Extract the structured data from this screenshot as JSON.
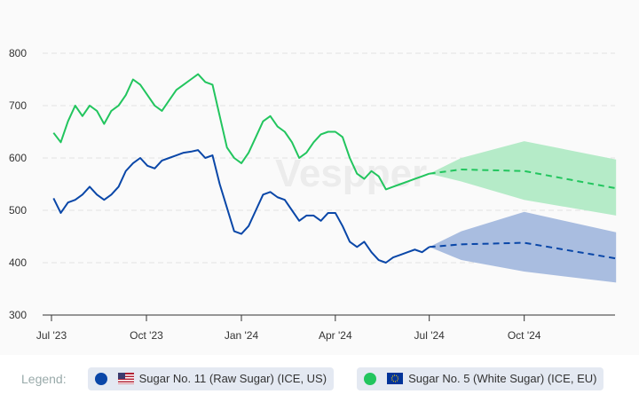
{
  "chart_data": {
    "type": "line",
    "watermark": "Vespper",
    "ylim": [
      300,
      800
    ],
    "yticks": [
      300,
      400,
      500,
      600,
      700,
      800
    ],
    "xlim": [
      "2023-06-26",
      "2024-12-29"
    ],
    "xticks": [
      {
        "d": "2023-07-01",
        "label": "Jul '23"
      },
      {
        "d": "2023-10-01",
        "label": "Oct '23"
      },
      {
        "d": "2024-01-01",
        "label": "Jan '24"
      },
      {
        "d": "2024-04-01",
        "label": "Apr '24"
      },
      {
        "d": "2024-07-01",
        "label": "Jul '24"
      },
      {
        "d": "2024-10-01",
        "label": "Oct '24"
      }
    ],
    "grid": "horizontal dashed",
    "dates": [
      "2023-07-03",
      "2023-07-10",
      "2023-07-17",
      "2023-07-24",
      "2023-07-31",
      "2023-08-07",
      "2023-08-14",
      "2023-08-21",
      "2023-08-28",
      "2023-09-04",
      "2023-09-11",
      "2023-09-18",
      "2023-09-25",
      "2023-10-02",
      "2023-10-09",
      "2023-10-16",
      "2023-10-23",
      "2023-10-30",
      "2023-11-06",
      "2023-11-13",
      "2023-11-20",
      "2023-11-27",
      "2023-12-04",
      "2023-12-11",
      "2023-12-18",
      "2023-12-25",
      "2024-01-01",
      "2024-01-08",
      "2024-01-15",
      "2024-01-22",
      "2024-01-29",
      "2024-02-05",
      "2024-02-12",
      "2024-02-19",
      "2024-02-26",
      "2024-03-04",
      "2024-03-11",
      "2024-03-18",
      "2024-03-25",
      "2024-04-01",
      "2024-04-08",
      "2024-04-15",
      "2024-04-22",
      "2024-04-29",
      "2024-05-06",
      "2024-05-13",
      "2024-05-20",
      "2024-05-27",
      "2024-06-03",
      "2024-06-10",
      "2024-06-17",
      "2024-06-24",
      "2024-07-01"
    ],
    "series": [
      {
        "name": "Sugar No. 11 (Raw Sugar) (ICE, US)",
        "color": "#0a47a8",
        "band_color": "#a9bde0",
        "values": [
          523,
          495,
          515,
          520,
          530,
          545,
          530,
          520,
          530,
          545,
          575,
          590,
          600,
          585,
          580,
          595,
          600,
          605,
          610,
          612,
          615,
          600,
          605,
          550,
          505,
          460,
          455,
          470,
          500,
          530,
          535,
          525,
          520,
          500,
          480,
          490,
          490,
          480,
          495,
          495,
          470,
          440,
          430,
          440,
          420,
          405,
          400,
          410,
          415,
          420,
          425,
          420,
          430
        ],
        "forecast": {
          "dates": [
            "2024-07-01",
            "2024-08-01",
            "2024-10-01",
            "2024-12-29"
          ],
          "mean": [
            430,
            435,
            438,
            408
          ],
          "upper": [
            430,
            460,
            497,
            458
          ],
          "lower": [
            430,
            405,
            383,
            362
          ]
        }
      },
      {
        "name": "Sugar No. 5 (White Sugar) (ICE, EU)",
        "color": "#22c55e",
        "band_color": "#b5ebc8",
        "values": [
          648,
          630,
          670,
          700,
          680,
          700,
          690,
          665,
          690,
          700,
          720,
          750,
          740,
          720,
          700,
          690,
          710,
          730,
          740,
          750,
          760,
          745,
          740,
          680,
          620,
          600,
          590,
          610,
          640,
          670,
          680,
          660,
          650,
          630,
          600,
          610,
          630,
          645,
          650,
          650,
          640,
          600,
          570,
          560,
          575,
          565,
          540,
          545,
          550,
          555,
          560,
          565,
          570
        ],
        "forecast": {
          "dates": [
            "2024-07-01",
            "2024-08-01",
            "2024-10-01",
            "2024-12-29"
          ],
          "mean": [
            570,
            578,
            575,
            542
          ],
          "upper": [
            570,
            600,
            632,
            597
          ],
          "lower": [
            570,
            555,
            520,
            490
          ]
        }
      }
    ]
  },
  "legend": {
    "label": "Legend:",
    "items": [
      {
        "text": "Sugar No. 11 (Raw Sugar) (ICE, US)",
        "flag": "us-flag-icon"
      },
      {
        "text": "Sugar No. 5 (White Sugar) (ICE, EU)",
        "flag": "eu-flag-icon"
      }
    ]
  }
}
